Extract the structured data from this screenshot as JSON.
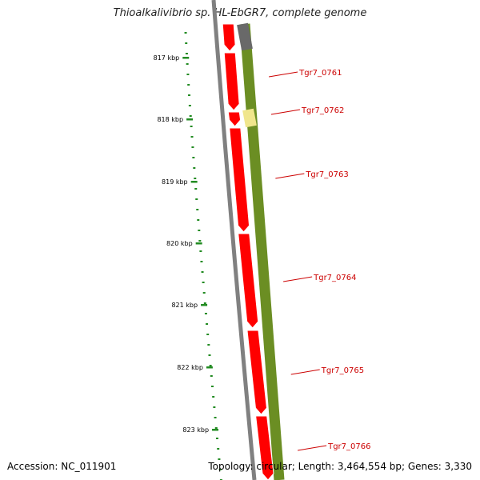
{
  "title": "Thioalkalivibrio sp. HL-EbGR7, complete genome",
  "footer": {
    "accession": "Accession: NC_011901",
    "stats": "Topology: circular; Length: 3,464,554 bp; Genes: 3,330"
  },
  "ticks": [
    {
      "label": "817 kbp"
    },
    {
      "label": "818 kbp"
    },
    {
      "label": "819 kbp"
    },
    {
      "label": "820 kbp"
    },
    {
      "label": "821 kbp"
    },
    {
      "label": "822 kbp"
    },
    {
      "label": "823 kbp"
    }
  ],
  "genes": [
    {
      "label": "Tgr7_0761"
    },
    {
      "label": "Tgr7_0762"
    },
    {
      "label": "Tgr7_0763"
    },
    {
      "label": "Tgr7_0764"
    },
    {
      "label": "Tgr7_0765"
    },
    {
      "label": "Tgr7_0766"
    }
  ],
  "colors": {
    "backbone": "#808080",
    "cds": "#ff0000",
    "gene_track": "#6b8e23",
    "gene_highlight": "#f0e68c",
    "gene_track_start": "#696969",
    "ticks": "#228b22",
    "labels": "#cc0000"
  }
}
